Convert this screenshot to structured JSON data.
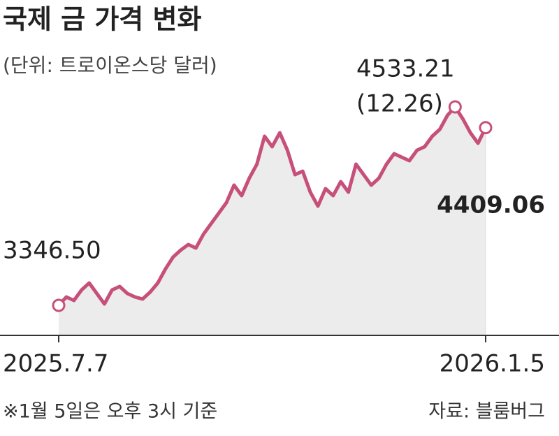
{
  "chart_data": {
    "type": "line",
    "title": "국제 금 가격 변화",
    "subtitle": "(단위: 트로이온스당 달러)",
    "categories": [
      "2025.7.7",
      null,
      null,
      null,
      null,
      null,
      null,
      null,
      null,
      null,
      null,
      null,
      null,
      null,
      null,
      null,
      null,
      null,
      null,
      null,
      null,
      null,
      null,
      null,
      null,
      null,
      null,
      null,
      null,
      null,
      null,
      null,
      null,
      null,
      null,
      null,
      null,
      null,
      null,
      null,
      null,
      null,
      null,
      null,
      null,
      null,
      null,
      null,
      null,
      null,
      null,
      null,
      null,
      null,
      null,
      null,
      "2026.1.5"
    ],
    "values": [
      3346.5,
      3396.6,
      3375.8,
      3438.4,
      3480.2,
      3417.5,
      3354.9,
      3438.4,
      3459.3,
      3417.5,
      3396.6,
      3384.1,
      3425.9,
      3480.2,
      3563.8,
      3634.9,
      3676.6,
      3710.1,
      3689.2,
      3772.8,
      3835.4,
      3898.1,
      3960.8,
      4065.3,
      4002.6,
      4107.1,
      4190.7,
      4357.8,
      4295.1,
      4378.7,
      4274.2,
      4128.0,
      4148.9,
      4023.5,
      3939.9,
      4044.4,
      4002.6,
      4086.2,
      4023.5,
      4190.7,
      4128.0,
      4065.3,
      4107.1,
      4190.7,
      4253.3,
      4232.4,
      4211.6,
      4274.2,
      4295.1,
      4357.8,
      4399.6,
      4483.2,
      4533.21,
      4462.3,
      4378.7,
      4316.0,
      4409.06
    ],
    "value_labels": [
      "3346.50",
      null,
      null,
      null,
      null,
      null,
      null,
      null,
      null,
      null,
      null,
      null,
      null,
      null,
      null,
      null,
      null,
      null,
      null,
      null,
      null,
      null,
      null,
      null,
      null,
      null,
      null,
      null,
      null,
      null,
      null,
      null,
      null,
      null,
      null,
      null,
      null,
      null,
      null,
      null,
      null,
      null,
      null,
      null,
      null,
      null,
      null,
      null,
      null,
      null,
      null,
      null,
      "4533.21",
      null,
      null,
      null,
      "4409.06"
    ],
    "peak_note": "(12.26)",
    "color": "#c7507a",
    "footnote": "※1월 5일은 오후 3시 기준",
    "source": "자료: 블룸버그"
  }
}
